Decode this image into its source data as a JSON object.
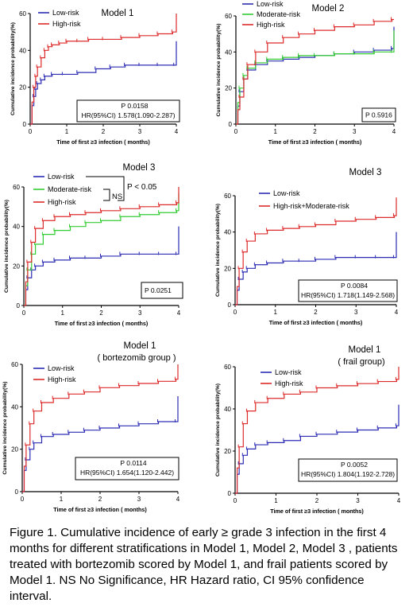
{
  "figure": {
    "caption": "Figure 1. Cumulative incidence of early ≥ grade 3 infection in the first 4 months for different stratifications in Model 1, Model 2, Model 3 , patients treated with bortezomib scored by Model 1, and frail patients scored by Model 1. NS No Significance, HR Hazard ratio, CI 95% confidence interval."
  },
  "colors": {
    "low": "#2d2db4",
    "moderate": "#33cc33",
    "high": "#dd2b2b",
    "axis": "#000000"
  },
  "chart_data": [
    {
      "type": "line",
      "title": "Model  1",
      "subtitle": "",
      "xlabel": "Time of first ≥3 infection ( months)",
      "ylabel": "Cumulative incidence probability(%)",
      "xlim": [
        0,
        4
      ],
      "ylim": [
        0,
        60
      ],
      "xticks": [
        0,
        1,
        2,
        3,
        4
      ],
      "yticks": [
        0,
        20,
        40,
        60
      ],
      "legend_position": "top-left",
      "series": [
        {
          "name": "Low-risk",
          "color": "#2d2db4",
          "x": [
            0,
            0.05,
            0.1,
            0.15,
            0.2,
            0.3,
            0.4,
            0.6,
            0.9,
            1.3,
            1.8,
            2.2,
            2.6,
            3.0,
            3.5,
            3.95,
            4.0
          ],
          "y": [
            0,
            10,
            15,
            19,
            22,
            24,
            26,
            27,
            27,
            28,
            30,
            31,
            32,
            32,
            32,
            32,
            45
          ]
        },
        {
          "name": "High-risk",
          "color": "#dd2b2b",
          "x": [
            0,
            0.05,
            0.1,
            0.15,
            0.2,
            0.3,
            0.4,
            0.5,
            0.6,
            0.8,
            1.0,
            1.3,
            1.6,
            2.0,
            2.5,
            3.0,
            3.5,
            3.9,
            4.0
          ],
          "y": [
            0,
            12,
            20,
            26,
            31,
            36,
            40,
            42,
            43,
            44,
            45,
            45,
            46,
            46,
            47,
            48,
            49,
            50,
            60
          ]
        }
      ],
      "annotations": [
        {
          "lines": [
            "P  0.0158",
            "HR(95%CI) 1.578(1.090-2.287)"
          ]
        }
      ]
    },
    {
      "type": "line",
      "title": "Model  2",
      "subtitle": "",
      "xlabel": "Time of first ≥3 infection ( months)",
      "ylabel": "Cumulative incidence probability(%)",
      "xlim": [
        0,
        4
      ],
      "ylim": [
        0,
        60
      ],
      "xticks": [
        0,
        1,
        2,
        3,
        4
      ],
      "yticks": [
        0,
        20,
        40,
        60
      ],
      "legend_position": "top-left",
      "series": [
        {
          "name": "Low-risk",
          "color": "#2d2db4",
          "x": [
            0,
            0.05,
            0.1,
            0.2,
            0.3,
            0.5,
            0.8,
            1.2,
            1.6,
            2.0,
            2.5,
            3.0,
            3.5,
            3.95,
            4.0
          ],
          "y": [
            0,
            10,
            18,
            25,
            30,
            33,
            35,
            36,
            37,
            38,
            39,
            40,
            41,
            42,
            54
          ]
        },
        {
          "name": "Moderate-risk",
          "color": "#33cc33",
          "x": [
            0,
            0.05,
            0.1,
            0.2,
            0.3,
            0.5,
            0.8,
            1.2,
            1.6,
            2.0,
            2.5,
            3.0,
            3.5,
            3.95,
            4.0
          ],
          "y": [
            0,
            12,
            20,
            27,
            31,
            34,
            36,
            37,
            38,
            38,
            39,
            39,
            40,
            40,
            52
          ]
        },
        {
          "name": "High-risk",
          "color": "#dd2b2b",
          "x": [
            0,
            0.05,
            0.1,
            0.2,
            0.3,
            0.5,
            0.8,
            1.2,
            1.6,
            2.0,
            2.5,
            3.0,
            3.5,
            3.95,
            4.0
          ],
          "y": [
            0,
            8,
            15,
            25,
            33,
            40,
            45,
            48,
            50,
            52,
            54,
            55,
            57,
            58,
            58
          ]
        }
      ],
      "annotations": [
        {
          "lines": [
            "P  0.5916"
          ]
        }
      ]
    },
    {
      "type": "line",
      "title": "Model  3",
      "subtitle": "",
      "xlabel": "Time of first ≥3 infection ( months)",
      "ylabel": "Cumulative incidence probability(%)",
      "xlim": [
        0,
        4
      ],
      "ylim": [
        0,
        60
      ],
      "xticks": [
        0,
        1,
        2,
        3,
        4
      ],
      "yticks": [
        0,
        20,
        40,
        60
      ],
      "legend_position": "top-left",
      "series": [
        {
          "name": "Low-risk",
          "color": "#2d2db4",
          "x": [
            0,
            0.05,
            0.1,
            0.2,
            0.3,
            0.5,
            0.8,
            1.2,
            1.6,
            2.0,
            2.5,
            3.0,
            3.5,
            3.95,
            4.0
          ],
          "y": [
            0,
            8,
            14,
            18,
            20,
            22,
            23,
            24,
            24,
            25,
            26,
            26,
            26,
            26,
            40
          ]
        },
        {
          "name": "Moderate-risk",
          "color": "#33cc33",
          "x": [
            0,
            0.05,
            0.1,
            0.2,
            0.3,
            0.5,
            0.8,
            1.2,
            1.6,
            2.0,
            2.5,
            3.0,
            3.5,
            3.95,
            4.0
          ],
          "y": [
            0,
            10,
            18,
            26,
            31,
            36,
            38,
            40,
            42,
            43,
            45,
            46,
            47,
            48,
            57
          ]
        },
        {
          "name": "High-risk",
          "color": "#dd2b2b",
          "x": [
            0,
            0.05,
            0.1,
            0.2,
            0.3,
            0.5,
            0.8,
            1.2,
            1.6,
            2.0,
            2.5,
            3.0,
            3.5,
            3.95,
            4.0
          ],
          "y": [
            0,
            12,
            22,
            32,
            39,
            43,
            45,
            46,
            47,
            48,
            49,
            50,
            51,
            52,
            60
          ]
        }
      ],
      "bracket": {
        "outer_label": "P < 0.05",
        "inner_label": "NS"
      },
      "annotations": [
        {
          "lines": [
            "P  0.0251"
          ]
        }
      ]
    },
    {
      "type": "line",
      "title": "Model  3",
      "subtitle": "",
      "xlabel": "Time of first ≥3 infection ( months)",
      "ylabel": "Cumulative incidence probability(%)",
      "xlim": [
        0,
        4
      ],
      "ylim": [
        0,
        60
      ],
      "xticks": [
        0,
        1,
        2,
        3,
        4
      ],
      "yticks": [
        0,
        20,
        40,
        60
      ],
      "legend_position": "top-left",
      "series": [
        {
          "name": "Low-risk",
          "color": "#2d2db4",
          "x": [
            0,
            0.05,
            0.1,
            0.2,
            0.3,
            0.5,
            0.8,
            1.2,
            1.6,
            2.0,
            2.5,
            3.0,
            3.5,
            3.95,
            4.0
          ],
          "y": [
            0,
            8,
            14,
            18,
            20,
            22,
            23,
            24,
            24,
            25,
            26,
            26,
            26,
            26,
            40
          ]
        },
        {
          "name": "High-risk+Moderate-risk",
          "color": "#dd2b2b",
          "x": [
            0,
            0.05,
            0.1,
            0.2,
            0.3,
            0.5,
            0.8,
            1.2,
            1.6,
            2.0,
            2.5,
            3.0,
            3.5,
            3.95,
            4.0
          ],
          "y": [
            0,
            10,
            20,
            29,
            35,
            39,
            41,
            42,
            43,
            44,
            46,
            47,
            48,
            49,
            59
          ]
        }
      ],
      "annotations": [
        {
          "lines": [
            "P  0.0084",
            "HR(95%CI) 1.718(1.149-2.568)"
          ]
        }
      ]
    },
    {
      "type": "line",
      "title": "Model  1",
      "subtitle": "( bortezomib group )",
      "xlabel": "Time of first ≥3 infection ( months)",
      "ylabel": "Cumulative incidence probability(%)",
      "xlim": [
        0,
        4
      ],
      "ylim": [
        0,
        60
      ],
      "xticks": [
        0,
        1,
        2,
        3,
        4
      ],
      "yticks": [
        0,
        20,
        40,
        60
      ],
      "legend_position": "top-left",
      "series": [
        {
          "name": "Low-risk",
          "color": "#2d2db4",
          "x": [
            0,
            0.05,
            0.1,
            0.2,
            0.3,
            0.5,
            0.8,
            1.2,
            1.6,
            2.0,
            2.5,
            3.0,
            3.5,
            3.95,
            4.0
          ],
          "y": [
            0,
            10,
            15,
            20,
            23,
            26,
            27,
            28,
            29,
            30,
            31,
            32,
            33,
            33,
            45
          ]
        },
        {
          "name": "High-risk",
          "color": "#dd2b2b",
          "x": [
            0,
            0.05,
            0.1,
            0.2,
            0.3,
            0.5,
            0.8,
            1.2,
            1.6,
            2.0,
            2.5,
            3.0,
            3.5,
            3.95,
            4.0
          ],
          "y": [
            0,
            12,
            22,
            32,
            38,
            42,
            44,
            46,
            47,
            49,
            50,
            51,
            52,
            53,
            60
          ]
        }
      ],
      "annotations": [
        {
          "lines": [
            "P  0.0114",
            "HR(95%CI) 1.654(1.120-2.442)"
          ]
        }
      ]
    },
    {
      "type": "line",
      "title": "Model  1",
      "subtitle": "( frail group)",
      "xlabel": "Time of first ≥3 infection ( months)",
      "ylabel": "Cumulative incidence probability(%)",
      "xlim": [
        0,
        4
      ],
      "ylim": [
        0,
        60
      ],
      "xticks": [
        0,
        1,
        2,
        3,
        4
      ],
      "yticks": [
        0,
        20,
        40,
        60
      ],
      "legend_position": "top-left",
      "series": [
        {
          "name": "Low-risk",
          "color": "#2d2db4",
          "x": [
            0,
            0.05,
            0.1,
            0.2,
            0.3,
            0.5,
            0.8,
            1.2,
            1.6,
            2.0,
            2.5,
            3.0,
            3.5,
            3.95,
            4.0
          ],
          "y": [
            0,
            9,
            14,
            18,
            21,
            23,
            24,
            25,
            27,
            28,
            29,
            30,
            31,
            32,
            42
          ]
        },
        {
          "name": "High-risk",
          "color": "#dd2b2b",
          "x": [
            0,
            0.05,
            0.1,
            0.2,
            0.3,
            0.5,
            0.8,
            1.2,
            1.6,
            2.0,
            2.5,
            3.0,
            3.5,
            3.95,
            4.0
          ],
          "y": [
            0,
            12,
            22,
            33,
            39,
            43,
            45,
            47,
            48,
            50,
            51,
            52,
            53,
            54,
            60
          ]
        }
      ],
      "annotations": [
        {
          "lines": [
            "P  0.0052",
            "HR(95%CI) 1.804(1.192-2.728)"
          ]
        }
      ]
    }
  ]
}
